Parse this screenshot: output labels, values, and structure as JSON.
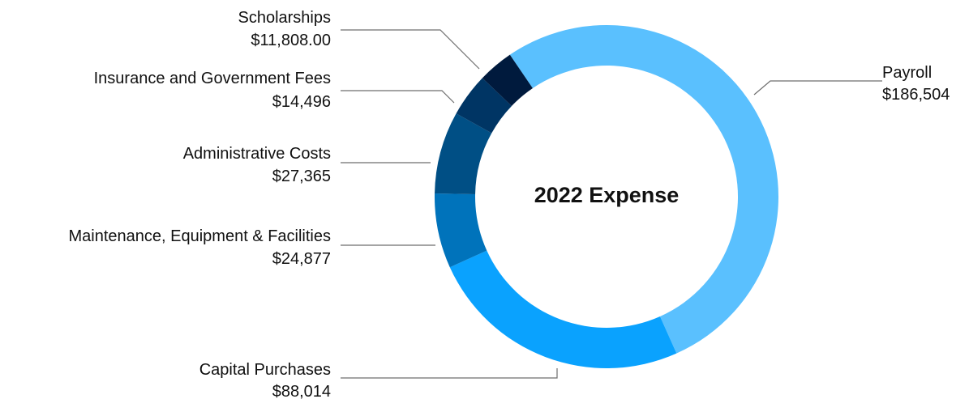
{
  "chart_data": {
    "type": "pie",
    "title": "2022 Expense",
    "slices": [
      {
        "label": "Payroll",
        "value_label": "$186,504",
        "value": 186504,
        "color": "#5ac0fe"
      },
      {
        "label": "Capital Purchases",
        "value_label": "$88,014",
        "value": 88014,
        "color": "#0aa2fe"
      },
      {
        "label": "Maintenance, Equipment & Facilities",
        "value_label": "$24,877",
        "value": 24877,
        "color": "#0073bb"
      },
      {
        "label": "Administrative Costs",
        "value_label": "$27,365",
        "value": 27365,
        "color": "#004f85"
      },
      {
        "label": "Insurance and Government Fees",
        "value_label": "$14,496",
        "value": 14496,
        "color": "#003564"
      },
      {
        "label": "Scholarships",
        "value_label": "$11,808.00",
        "value": 11808,
        "color": "#001a3d"
      }
    ],
    "legend": "none",
    "grid": false
  }
}
